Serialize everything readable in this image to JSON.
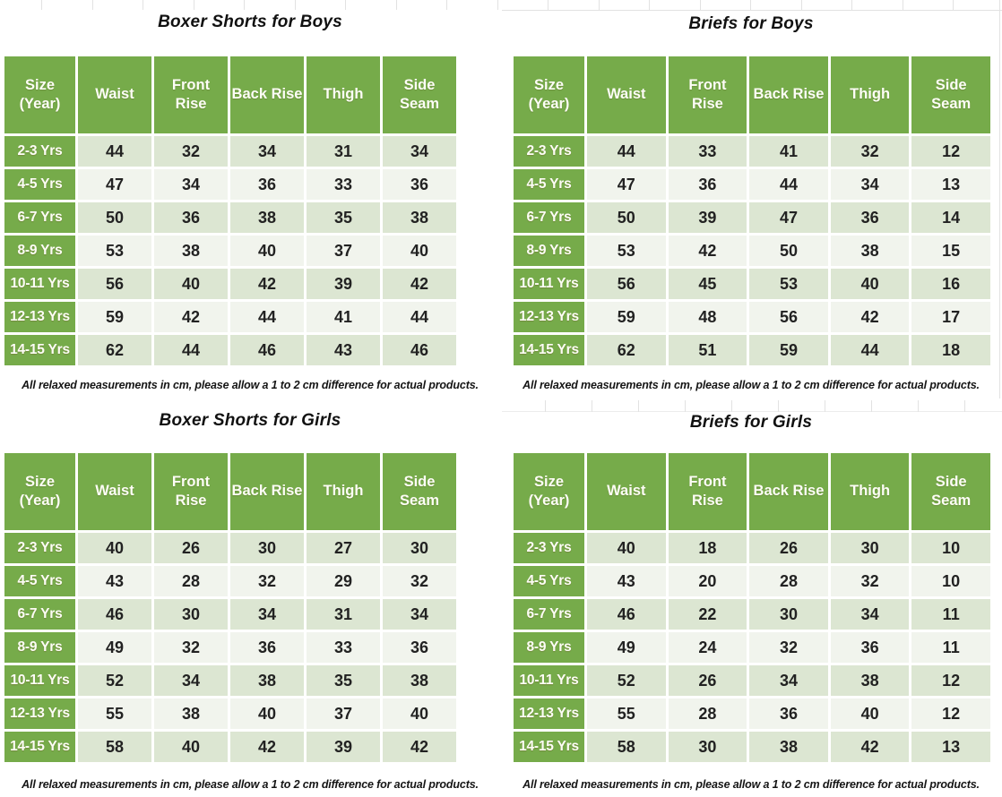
{
  "footnote": "All relaxed measurements in cm, please allow a 1 to 2 cm difference for actual products.",
  "column_headers": [
    "Size\n(Year)",
    "Waist",
    "Front\nRise",
    "Back Rise",
    "Thigh",
    "Side\nSeam"
  ],
  "tables": [
    {
      "id": "boxer-shorts-boys",
      "title": "Boxer Shorts for Boys",
      "rows": [
        {
          "size": "2-3 Yrs",
          "values": [
            44,
            32,
            34,
            31,
            34
          ]
        },
        {
          "size": "4-5 Yrs",
          "values": [
            47,
            34,
            36,
            33,
            36
          ]
        },
        {
          "size": "6-7 Yrs",
          "values": [
            50,
            36,
            38,
            35,
            38
          ]
        },
        {
          "size": "8-9 Yrs",
          "values": [
            53,
            38,
            40,
            37,
            40
          ]
        },
        {
          "size": "10-11 Yrs",
          "values": [
            56,
            40,
            42,
            39,
            42
          ]
        },
        {
          "size": "12-13 Yrs",
          "values": [
            59,
            42,
            44,
            41,
            44
          ]
        },
        {
          "size": "14-15 Yrs",
          "values": [
            62,
            44,
            46,
            43,
            46
          ]
        }
      ]
    },
    {
      "id": "briefs-boys",
      "title": "Briefs for Boys",
      "rows": [
        {
          "size": "2-3 Yrs",
          "values": [
            44,
            33,
            41,
            32,
            12
          ]
        },
        {
          "size": "4-5 Yrs",
          "values": [
            47,
            36,
            44,
            34,
            13
          ]
        },
        {
          "size": "6-7 Yrs",
          "values": [
            50,
            39,
            47,
            36,
            14
          ]
        },
        {
          "size": "8-9 Yrs",
          "values": [
            53,
            42,
            50,
            38,
            15
          ]
        },
        {
          "size": "10-11 Yrs",
          "values": [
            56,
            45,
            53,
            40,
            16
          ]
        },
        {
          "size": "12-13 Yrs",
          "values": [
            59,
            48,
            56,
            42,
            17
          ]
        },
        {
          "size": "14-15 Yrs",
          "values": [
            62,
            51,
            59,
            44,
            18
          ]
        }
      ]
    },
    {
      "id": "boxer-shorts-girls",
      "title": "Boxer Shorts for Girls",
      "rows": [
        {
          "size": "2-3 Yrs",
          "values": [
            40,
            26,
            30,
            27,
            30
          ]
        },
        {
          "size": "4-5 Yrs",
          "values": [
            43,
            28,
            32,
            29,
            32
          ]
        },
        {
          "size": "6-7 Yrs",
          "values": [
            46,
            30,
            34,
            31,
            34
          ]
        },
        {
          "size": "8-9 Yrs",
          "values": [
            49,
            32,
            36,
            33,
            36
          ]
        },
        {
          "size": "10-11 Yrs",
          "values": [
            52,
            34,
            38,
            35,
            38
          ]
        },
        {
          "size": "12-13 Yrs",
          "values": [
            55,
            38,
            40,
            37,
            40
          ]
        },
        {
          "size": "14-15 Yrs",
          "values": [
            58,
            40,
            42,
            39,
            42
          ]
        }
      ]
    },
    {
      "id": "briefs-girls",
      "title": "Briefs for Girls",
      "rows": [
        {
          "size": "2-3 Yrs",
          "values": [
            40,
            18,
            26,
            30,
            10
          ]
        },
        {
          "size": "4-5 Yrs",
          "values": [
            43,
            20,
            28,
            32,
            10
          ]
        },
        {
          "size": "6-7 Yrs",
          "values": [
            46,
            22,
            30,
            34,
            11
          ]
        },
        {
          "size": "8-9 Yrs",
          "values": [
            49,
            24,
            32,
            36,
            11
          ]
        },
        {
          "size": "10-11 Yrs",
          "values": [
            52,
            26,
            34,
            38,
            12
          ]
        },
        {
          "size": "12-13 Yrs",
          "values": [
            55,
            28,
            36,
            40,
            12
          ]
        },
        {
          "size": "14-15 Yrs",
          "values": [
            58,
            30,
            38,
            42,
            13
          ]
        }
      ]
    }
  ],
  "colors": {
    "header_green": "#76ab4a",
    "row_dark": "#dce6d2",
    "row_light": "#f1f4ed",
    "data_text": "#222222",
    "header_text": "#fdfdf6",
    "grid_line": "#e2e2e2",
    "title_text": "#111111"
  }
}
